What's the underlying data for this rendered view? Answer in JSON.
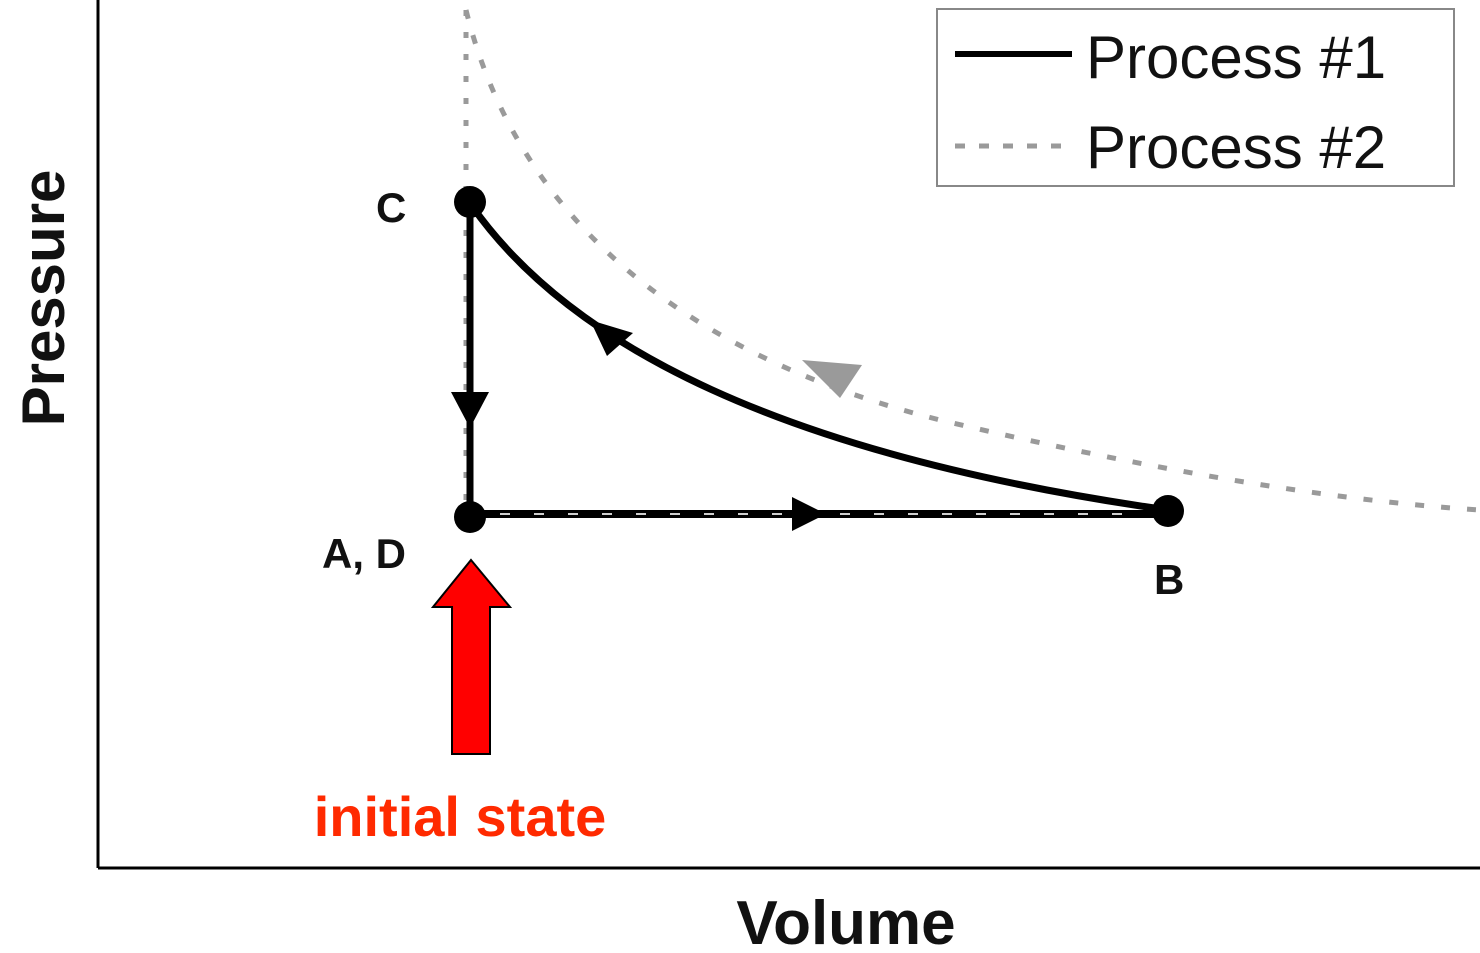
{
  "axes": {
    "x_label": "Volume",
    "y_label": "Pressure"
  },
  "legend": {
    "items": [
      {
        "label": "Process #1",
        "style": "solid",
        "color": "#000000"
      },
      {
        "label": "Process #2",
        "style": "dashed",
        "color": "#9a9a9a"
      }
    ]
  },
  "states": {
    "c": "C",
    "ad": "A, D",
    "b": "B"
  },
  "annotation": {
    "text": "initial state",
    "color": "#ff2a00"
  },
  "colors": {
    "process_1": "#000000",
    "process_2": "#9a9a9a",
    "arrow_fill": "#ff0000",
    "annotation_text": "#ff2a00"
  }
}
